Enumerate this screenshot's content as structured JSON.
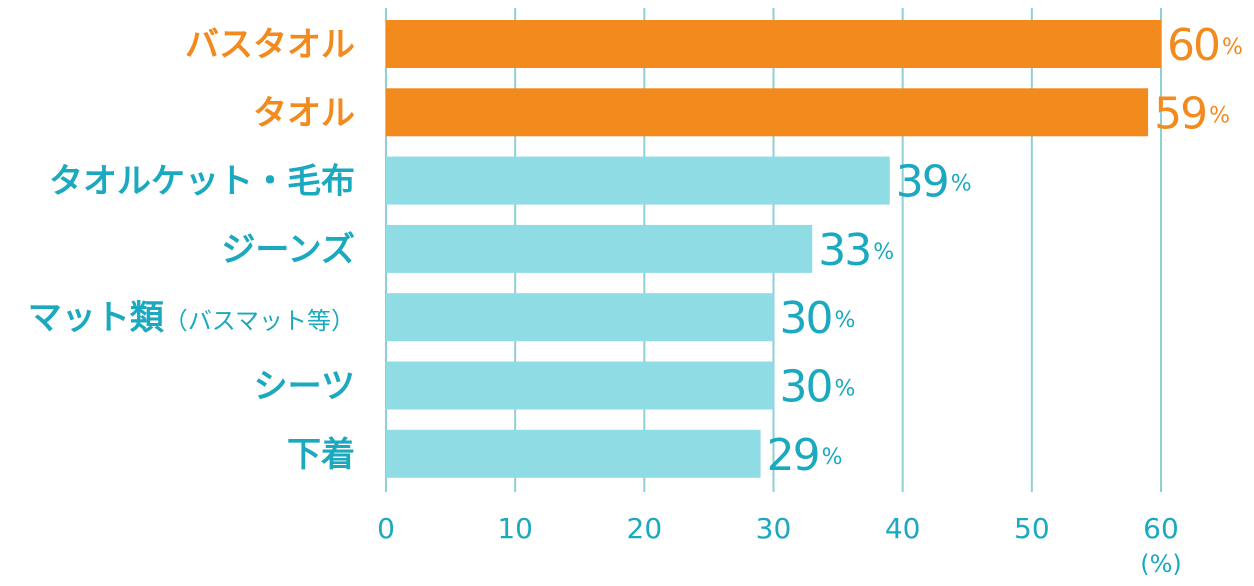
{
  "chart_data": {
    "type": "bar",
    "orientation": "horizontal",
    "categories": [
      {
        "main": "バスタオル",
        "sub": ""
      },
      {
        "main": "タオル",
        "sub": ""
      },
      {
        "main": "タオルケット・毛布",
        "sub": ""
      },
      {
        "main": "ジーンズ",
        "sub": ""
      },
      {
        "main": "マット類",
        "sub": "（バスマット等）"
      },
      {
        "main": "シーツ",
        "sub": ""
      },
      {
        "main": "下着",
        "sub": ""
      }
    ],
    "values": [
      60,
      59,
      39,
      33,
      30,
      30,
      29
    ],
    "highlighted": [
      true,
      true,
      false,
      false,
      false,
      false,
      false
    ],
    "value_suffix": "%",
    "xlim": [
      0,
      60
    ],
    "xticks": [
      0,
      10,
      20,
      30,
      40,
      50,
      60
    ],
    "x_unit_label": "(%)",
    "grid": true,
    "colors": {
      "highlight_bar": "#f28a1e",
      "normal_bar": "#8fdce5",
      "highlight_text": "#f28a1e",
      "normal_text": "#1ba9bf",
      "grid": "#8fcfd6",
      "axis": "#8fcfd6"
    }
  }
}
